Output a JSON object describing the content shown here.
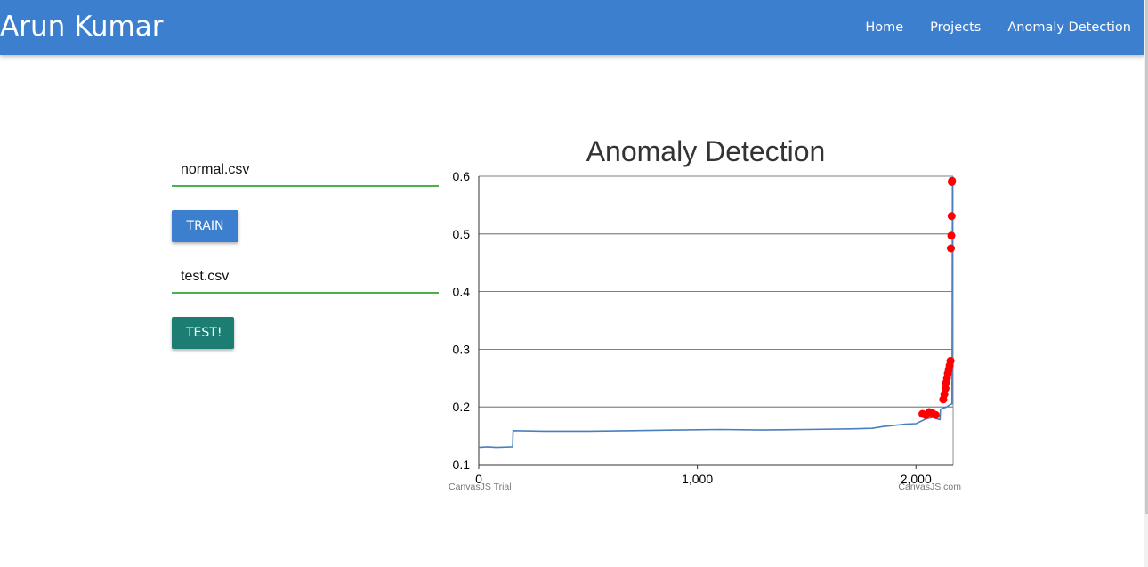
{
  "header": {
    "brand": "Arun Kumar",
    "nav": [
      {
        "label": "Home"
      },
      {
        "label": "Projects"
      },
      {
        "label": "Anomaly Detection"
      }
    ]
  },
  "form": {
    "train_file": "normal.csv",
    "train_button": "TRAIN",
    "test_file": "test.csv",
    "test_button": "TEST!"
  },
  "colors": {
    "navbar": "#3b7fce",
    "series_line": "#4a7fbf",
    "anomaly": "#ff0000",
    "input_underline": "#4caf50",
    "test_button": "#1c7e73"
  },
  "chart_data": {
    "type": "line",
    "title": "Anomaly Detection",
    "xlabel": "",
    "ylabel": "",
    "xlim": [
      0,
      2170
    ],
    "ylim": [
      0.1,
      0.6
    ],
    "xticks": [
      0,
      1000,
      2000
    ],
    "xtick_labels": [
      "0",
      "1,000",
      "2,000"
    ],
    "yticks": [
      0.1,
      0.2,
      0.3,
      0.4,
      0.5,
      0.6
    ],
    "ytick_labels": [
      "0.1",
      "0.2",
      "0.3",
      "0.4",
      "0.5",
      "0.6"
    ],
    "grid": true,
    "credits": [
      "CanvasJS Trial",
      "CanvasJS.com"
    ],
    "series": [
      {
        "type": "line",
        "x": [
          0,
          40,
          80,
          155,
          157,
          300,
          500,
          700,
          900,
          1100,
          1300,
          1500,
          1700,
          1800,
          1850,
          1900,
          1950,
          2000,
          2050,
          2080,
          2100,
          2110,
          2112,
          2140,
          2160,
          2165,
          2167
        ],
        "y": [
          0.13,
          0.131,
          0.13,
          0.131,
          0.159,
          0.158,
          0.158,
          0.159,
          0.16,
          0.161,
          0.16,
          0.161,
          0.162,
          0.163,
          0.166,
          0.168,
          0.17,
          0.171,
          0.18,
          0.182,
          0.179,
          0.178,
          0.196,
          0.2,
          0.205,
          0.205,
          0.59
        ]
      },
      {
        "type": "scatter",
        "x": [
          2030,
          2045,
          2060,
          2075,
          2090,
          2125,
          2130,
          2135,
          2138,
          2142,
          2146,
          2150,
          2154,
          2158,
          2160,
          2162,
          2163,
          2164,
          2165
        ],
        "y": [
          0.188,
          0.186,
          0.191,
          0.189,
          0.186,
          0.213,
          0.222,
          0.232,
          0.242,
          0.25,
          0.258,
          0.265,
          0.272,
          0.28,
          0.475,
          0.497,
          0.531,
          0.59,
          0.592
        ]
      }
    ]
  }
}
